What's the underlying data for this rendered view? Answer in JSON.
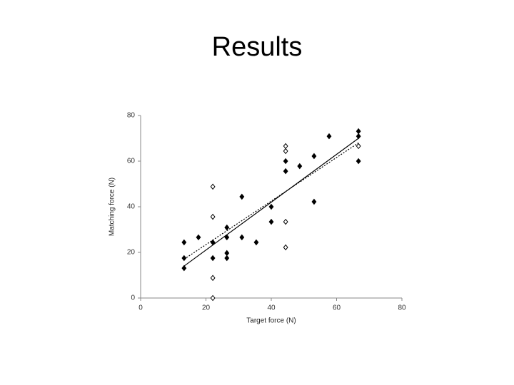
{
  "chart_data": {
    "type": "scatter",
    "title": "Results",
    "x_label": "Target force (N)",
    "y_label": "Matching force (N)",
    "xlim": [
      0,
      80
    ],
    "ylim": [
      0,
      80
    ],
    "xticks": [
      0,
      20,
      40,
      60,
      80
    ],
    "yticks": [
      0,
      20,
      40,
      60,
      80
    ],
    "color": "#000000",
    "series": [
      {
        "marker": "filled",
        "x": [
          13.3,
          13.3,
          13.3,
          17.7,
          22.1,
          22.1,
          26.4,
          26.4,
          26.4,
          26.4,
          31.0,
          31.0,
          35.4,
          40.0,
          40.0,
          44.4,
          44.4,
          48.7,
          53.1,
          53.1,
          57.7,
          66.7,
          66.7,
          66.7
        ],
        "values": [
          24.4,
          17.5,
          13.1,
          26.6,
          24.4,
          17.5,
          30.9,
          26.6,
          19.7,
          17.5,
          44.4,
          26.6,
          24.4,
          40.0,
          33.4,
          60.0,
          55.6,
          57.8,
          62.2,
          42.2,
          70.9,
          73.1,
          70.9,
          60.0
        ]
      },
      {
        "marker": "open",
        "x": [
          22.1,
          22.1,
          22.1,
          22.1,
          44.4,
          44.4,
          44.4,
          44.4,
          66.7
        ],
        "values": [
          48.8,
          35.6,
          8.8,
          0,
          66.6,
          64.4,
          33.4,
          22.2,
          66.6
        ]
      }
    ],
    "fit_lines": [
      {
        "style": "solid",
        "x": [
          13.3,
          66.7
        ],
        "values": [
          14.0,
          70.0
        ]
      },
      {
        "style": "dotted",
        "x": [
          13.3,
          66.7
        ],
        "values": [
          17.0,
          68.0
        ]
      }
    ]
  }
}
